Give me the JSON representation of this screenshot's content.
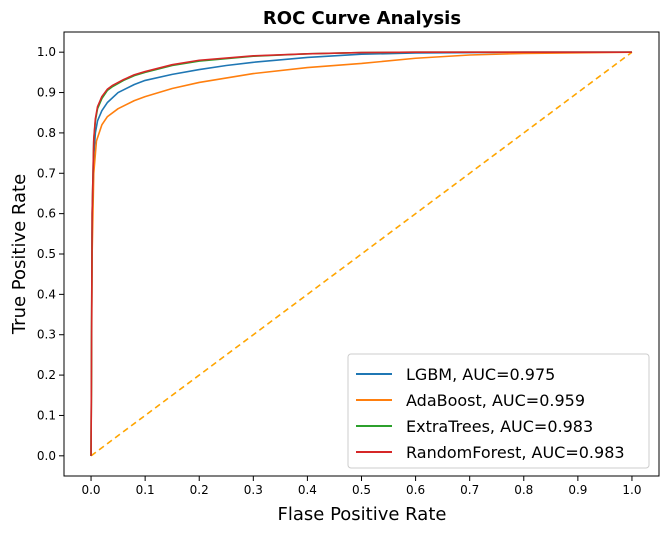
{
  "chart_data": {
    "type": "line",
    "title": "ROC Curve Analysis",
    "xlabel": "Flase Positive Rate",
    "ylabel": "True Positive Rate",
    "xlim": [
      -0.05,
      1.05
    ],
    "ylim": [
      -0.05,
      1.05
    ],
    "xticks": [
      "0.0",
      "0.1",
      "0.2",
      "0.3",
      "0.4",
      "0.5",
      "0.6",
      "0.7",
      "0.8",
      "0.9",
      "1.0"
    ],
    "yticks": [
      "0.0",
      "0.1",
      "0.2",
      "0.3",
      "0.4",
      "0.5",
      "0.6",
      "0.7",
      "0.8",
      "0.9",
      "1.0"
    ],
    "grid": false,
    "legend_position": "bottom-right",
    "series": [
      {
        "name": "LGBM, AUC=0.975",
        "color": "#1f77b4",
        "x": [
          0,
          0.002,
          0.005,
          0.008,
          0.012,
          0.02,
          0.03,
          0.05,
          0.08,
          0.1,
          0.15,
          0.2,
          0.25,
          0.3,
          0.4,
          0.5,
          0.6,
          0.8,
          1.0
        ],
        "y": [
          0,
          0.55,
          0.74,
          0.8,
          0.83,
          0.855,
          0.875,
          0.9,
          0.92,
          0.93,
          0.945,
          0.957,
          0.967,
          0.975,
          0.987,
          0.995,
          0.998,
          1.0,
          1.0
        ]
      },
      {
        "name": "AdaBoost, AUC=0.959",
        "color": "#ff7f0e",
        "x": [
          0,
          0.002,
          0.005,
          0.01,
          0.02,
          0.03,
          0.05,
          0.08,
          0.1,
          0.15,
          0.2,
          0.3,
          0.4,
          0.5,
          0.6,
          0.7,
          0.8,
          1.0
        ],
        "y": [
          0,
          0.5,
          0.7,
          0.78,
          0.82,
          0.84,
          0.86,
          0.88,
          0.89,
          0.91,
          0.925,
          0.947,
          0.962,
          0.972,
          0.985,
          0.993,
          0.997,
          1.0
        ]
      },
      {
        "name": "ExtraTrees, AUC=0.983",
        "color": "#2ca02c",
        "x": [
          0,
          0.002,
          0.005,
          0.008,
          0.012,
          0.02,
          0.03,
          0.04,
          0.06,
          0.08,
          0.1,
          0.15,
          0.2,
          0.3,
          0.4,
          0.5,
          0.6,
          1.0
        ],
        "y": [
          0,
          0.6,
          0.78,
          0.83,
          0.86,
          0.885,
          0.905,
          0.915,
          0.93,
          0.942,
          0.95,
          0.967,
          0.978,
          0.99,
          0.996,
          0.999,
          1.0,
          1.0
        ]
      },
      {
        "name": "RandomForest, AUC=0.983",
        "color": "#d62728",
        "x": [
          0,
          0.002,
          0.005,
          0.008,
          0.012,
          0.02,
          0.03,
          0.04,
          0.06,
          0.08,
          0.1,
          0.15,
          0.2,
          0.3,
          0.4,
          0.5,
          0.6,
          1.0
        ],
        "y": [
          0,
          0.6,
          0.785,
          0.835,
          0.865,
          0.89,
          0.908,
          0.918,
          0.932,
          0.944,
          0.952,
          0.969,
          0.98,
          0.991,
          0.996,
          0.999,
          1.0,
          1.0
        ]
      }
    ],
    "reference_line": {
      "color": "#ffa500",
      "style": "dashed",
      "x": [
        0,
        1
      ],
      "y": [
        0,
        1
      ]
    }
  }
}
